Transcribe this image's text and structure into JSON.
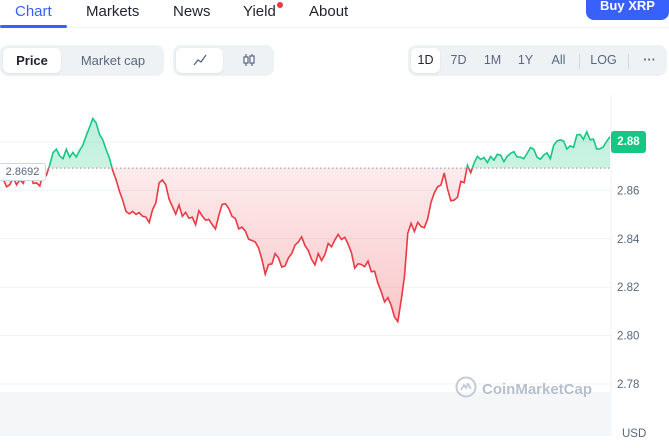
{
  "tabs": [
    {
      "label": "Chart",
      "active": true
    },
    {
      "label": "Markets",
      "active": false
    },
    {
      "label": "News",
      "active": false
    },
    {
      "label": "Yield",
      "active": false,
      "notification_dot": true
    },
    {
      "label": "About",
      "active": false
    }
  ],
  "buy_button": {
    "label": "Buy XRP"
  },
  "metric_toggle": {
    "options": [
      "Price",
      "Market cap"
    ],
    "selected": "Price"
  },
  "chart_style_toggle": {
    "options": [
      "line-chart-icon",
      "candlestick-icon"
    ],
    "selected": "line-chart-icon"
  },
  "range_toggle": {
    "options": [
      "1D",
      "7D",
      "1M",
      "1Y",
      "All"
    ],
    "selected": "1D",
    "log_label": "LOG",
    "more_icon": "more-horizontal-icon"
  },
  "price_tag": "2.88",
  "reference_price_label": "2.8692",
  "watermark": "CoinMarketCap",
  "currency_label": "USD",
  "colors": {
    "accent": "#3861fb",
    "up": "#16c784",
    "down": "#ea3943",
    "dot": "#ea3943"
  },
  "chart_data": {
    "type": "line",
    "reference_value": 2.8692,
    "current_value": 2.88,
    "ylim": [
      2.77,
      2.9
    ],
    "y_ticks": [
      2.88,
      2.86,
      2.84,
      2.82,
      2.8,
      2.78
    ],
    "series": [
      {
        "values": [
          2.8646,
          2.8646,
          2.8615,
          2.8624,
          2.8654,
          2.8623,
          2.8644,
          2.8629,
          2.8669,
          2.8685,
          2.8629,
          2.8631,
          2.8618,
          2.8669,
          2.8662,
          2.8705,
          2.8756,
          2.877,
          2.8743,
          2.8731,
          2.877,
          2.8737,
          2.8757,
          2.8738,
          2.8765,
          2.8787,
          2.8826,
          2.8861,
          2.8897,
          2.8879,
          2.8832,
          2.8809,
          2.8769,
          2.8734,
          2.8682,
          2.8645,
          2.8598,
          2.856,
          2.8513,
          2.8503,
          2.8513,
          2.8501,
          2.8508,
          2.8493,
          2.849,
          2.8467,
          2.852,
          2.8548,
          2.8631,
          2.8643,
          2.8623,
          2.8564,
          2.8533,
          2.8502,
          2.854,
          2.8493,
          2.8509,
          2.8485,
          2.8489,
          2.8458,
          2.8516,
          2.8494,
          2.8477,
          2.848,
          2.8459,
          2.8441,
          2.8496,
          2.8542,
          2.8545,
          2.8525,
          2.8493,
          2.8484,
          2.8441,
          2.8448,
          2.8432,
          2.8398,
          2.8393,
          2.8387,
          2.8362,
          2.8315,
          2.8254,
          2.8294,
          2.8296,
          2.8339,
          2.8321,
          2.8283,
          2.8288,
          2.8321,
          2.8339,
          2.8374,
          2.8387,
          2.8408,
          2.8372,
          2.8351,
          2.8315,
          2.8292,
          2.8339,
          2.831,
          2.8335,
          2.8381,
          2.8367,
          2.8395,
          2.8418,
          2.8397,
          2.8406,
          2.8378,
          2.8343,
          2.8279,
          2.8297,
          2.8294,
          2.8285,
          2.8308,
          2.8264,
          2.8266,
          2.8216,
          2.8181,
          2.8139,
          2.8157,
          2.8125,
          2.8077,
          2.8058,
          2.8145,
          2.8244,
          2.8423,
          2.8464,
          2.843,
          2.8468,
          2.8451,
          2.8446,
          2.8482,
          2.855,
          2.859,
          2.8615,
          2.8622,
          2.8672,
          2.8606,
          2.8557,
          2.856,
          2.8572,
          2.8637,
          2.8632,
          2.8704,
          2.8673,
          2.8713,
          2.8741,
          2.8728,
          2.8736,
          2.8715,
          2.874,
          2.8725,
          2.8749,
          2.8746,
          2.8719,
          2.8741,
          2.8753,
          2.876,
          2.8738,
          2.8738,
          2.8731,
          2.8753,
          2.8777,
          2.877,
          2.8737,
          2.8729,
          2.8746,
          2.8755,
          2.8731,
          2.8786,
          2.8804,
          2.8809,
          2.8804,
          2.8771,
          2.8784,
          2.8778,
          2.8829,
          2.8831,
          2.8811,
          2.8842,
          2.8809,
          2.8812,
          2.8771,
          2.8772,
          2.878,
          2.8803,
          2.8822
        ]
      }
    ]
  }
}
